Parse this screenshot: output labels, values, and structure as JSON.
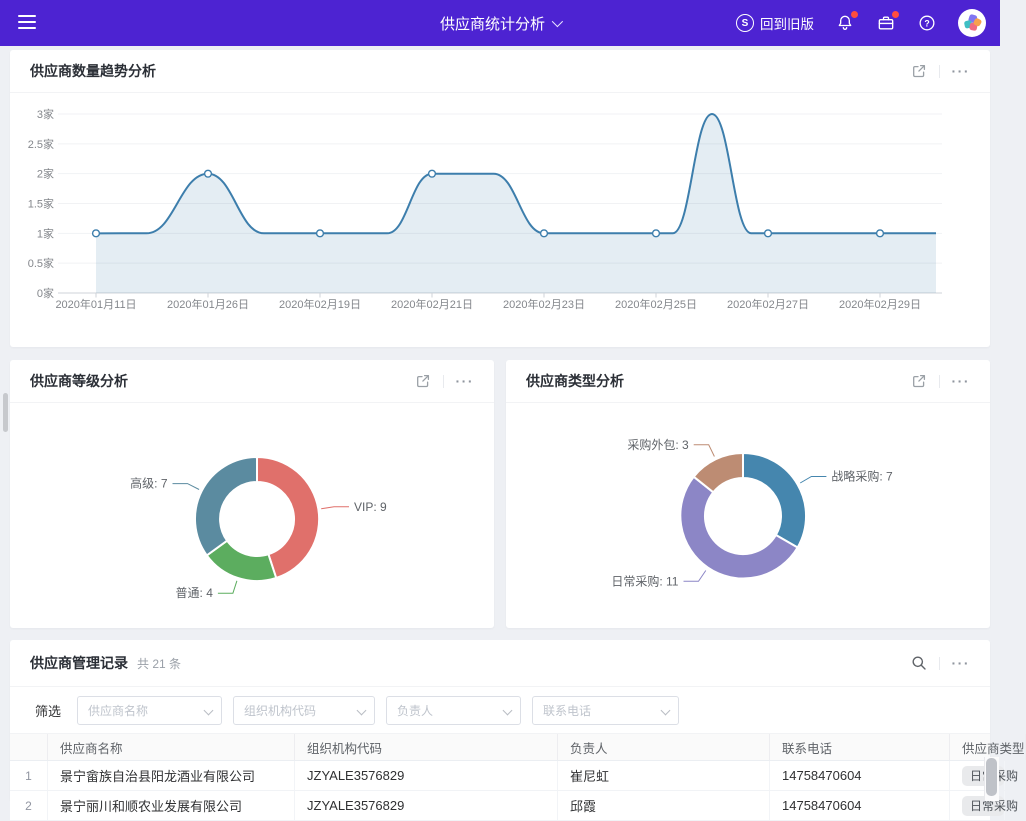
{
  "header": {
    "title": "供应商统计分析",
    "back_label": "回到旧版",
    "bg_color": "#4d23d2",
    "badge_color": "#ff4d3e"
  },
  "chart_data": [
    {
      "type": "line",
      "title": "供应商数量趋势分析",
      "unit": "家",
      "x_labels": [
        "2020年01月11日",
        "2020年01月26日",
        "2020年02月19日",
        "2020年02月21日",
        "2020年02月23日",
        "2020年02月25日",
        "2020年02月27日",
        "2020年02月29日"
      ],
      "values_at_labels": [
        1,
        2,
        1,
        2,
        1,
        1,
        1,
        1
      ],
      "points": [
        {
          "x": 0,
          "v": 1
        },
        {
          "x": 0.45,
          "v": 1
        },
        {
          "x": 1,
          "v": 2
        },
        {
          "x": 1.5,
          "v": 1
        },
        {
          "x": 2,
          "v": 1
        },
        {
          "x": 2.6,
          "v": 1
        },
        {
          "x": 3,
          "v": 2
        },
        {
          "x": 3.55,
          "v": 2
        },
        {
          "x": 4,
          "v": 1
        },
        {
          "x": 5,
          "v": 1
        },
        {
          "x": 5.15,
          "v": 1
        },
        {
          "x": 5.5,
          "v": 3
        },
        {
          "x": 5.85,
          "v": 1
        },
        {
          "x": 6,
          "v": 1
        },
        {
          "x": 7,
          "v": 1
        },
        {
          "x": 7.5,
          "v": 1
        }
      ],
      "y_ticks": [
        "0家",
        "0.5家",
        "1家",
        "1.5家",
        "2家",
        "2.5家",
        "3家"
      ],
      "ylim": [
        0,
        3
      ],
      "grid": "horizontal",
      "smooth": true,
      "line_color": "#3d7eac",
      "area_color": "rgba(61,126,172,0.14)"
    },
    {
      "type": "pie",
      "title": "供应商等级分析",
      "total": 20,
      "slices": [
        {
          "label": "VIP",
          "value": 9,
          "color": "#e0706b",
          "display": "VIP: 9"
        },
        {
          "label": "普通",
          "value": 4,
          "color": "#5cad5f",
          "display": "普通: 4"
        },
        {
          "label": "高级",
          "value": 7,
          "color": "#5b8ba0",
          "display": "高级: 7"
        }
      ]
    },
    {
      "type": "pie",
      "title": "供应商类型分析",
      "total": 21,
      "slices": [
        {
          "label": "战略采购",
          "value": 7,
          "color": "#4586ae",
          "display": "战略采购: 7"
        },
        {
          "label": "日常采购",
          "value": 11,
          "color": "#8c86c6",
          "display": "日常采购: 11"
        },
        {
          "label": "采购外包",
          "value": 3,
          "color": "#bd8c73",
          "display": "采购外包: 3"
        }
      ]
    }
  ],
  "table_card": {
    "title": "供应商管理记录",
    "count_text": "共 21 条",
    "filter_label": "筛选",
    "filters": [
      "供应商名称",
      "组织机构代码",
      "负责人",
      "联系电话"
    ],
    "columns": [
      "供应商名称",
      "组织机构代码",
      "负责人",
      "联系电话",
      "供应商类型"
    ],
    "rows": [
      {
        "no": "1",
        "name": "景宁畲族自治县阳龙酒业有限公司",
        "code": "JZYALE3576829",
        "person": "崔尼虹",
        "phone": "14758470604",
        "type": "日常采购"
      },
      {
        "no": "2",
        "name": "景宁丽川和顺农业发展有限公司",
        "code": "JZYALE3576829",
        "person": "邱霞",
        "phone": "14758470604",
        "type": "日常采购"
      }
    ]
  }
}
